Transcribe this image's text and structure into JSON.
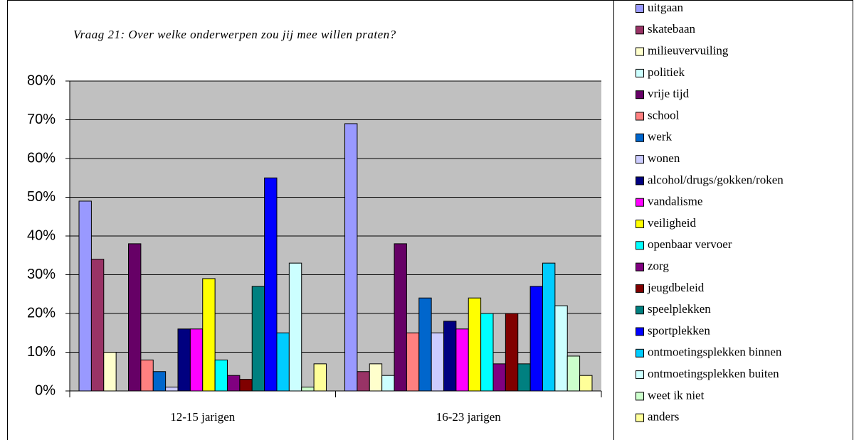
{
  "chart_data": {
    "type": "bar",
    "title": "Vraag 21: Over welke onderwerpen zou jij mee willen praten?",
    "categories": [
      "12-15 jarigen",
      "16-23 jarigen"
    ],
    "ylim": [
      0,
      80
    ],
    "yticks": [
      {
        "value": 0,
        "label": "0%"
      },
      {
        "value": 10,
        "label": "10%"
      },
      {
        "value": 20,
        "label": "20%"
      },
      {
        "value": 30,
        "label": "30%"
      },
      {
        "value": 40,
        "label": "40%"
      },
      {
        "value": 50,
        "label": "50%"
      },
      {
        "value": 60,
        "label": "60%"
      },
      {
        "value": 70,
        "label": "70%"
      },
      {
        "value": 80,
        "label": "80%"
      }
    ],
    "grid": true,
    "legend": "right",
    "series": [
      {
        "name": "uitgaan",
        "color": "#9999ff",
        "values": [
          49,
          69
        ]
      },
      {
        "name": "skatebaan",
        "color": "#993366",
        "values": [
          34,
          5
        ]
      },
      {
        "name": "milieuvervuiling",
        "color": "#ffffcc",
        "values": [
          10,
          7
        ]
      },
      {
        "name": "politiek",
        "color": "#ccffff",
        "values": [
          0,
          4
        ]
      },
      {
        "name": "vrije tijd",
        "color": "#660066",
        "values": [
          38,
          38
        ]
      },
      {
        "name": "school",
        "color": "#ff8080",
        "values": [
          8,
          15
        ]
      },
      {
        "name": "werk",
        "color": "#0066cc",
        "values": [
          5,
          24
        ]
      },
      {
        "name": "wonen",
        "color": "#ccccff",
        "values": [
          1,
          15
        ]
      },
      {
        "name": "alcohol/drugs/gokken/roken",
        "color": "#000080",
        "values": [
          16,
          18
        ]
      },
      {
        "name": "vandalisme",
        "color": "#ff00ff",
        "values": [
          16,
          16
        ]
      },
      {
        "name": "veiligheid",
        "color": "#ffff00",
        "values": [
          29,
          24
        ]
      },
      {
        "name": "openbaar vervoer",
        "color": "#00ffff",
        "values": [
          8,
          20
        ]
      },
      {
        "name": "zorg",
        "color": "#800080",
        "values": [
          4,
          7
        ]
      },
      {
        "name": "jeugdbeleid",
        "color": "#800000",
        "values": [
          3,
          20
        ]
      },
      {
        "name": "speelplekken",
        "color": "#008080",
        "values": [
          27,
          7
        ]
      },
      {
        "name": "sportplekken",
        "color": "#0000ff",
        "values": [
          55,
          27
        ]
      },
      {
        "name": "ontmoetingsplekken binnen",
        "color": "#00ccff",
        "values": [
          15,
          33
        ]
      },
      {
        "name": "ontmoetingsplekken buiten",
        "color": "#ccffff",
        "values": [
          33,
          22
        ]
      },
      {
        "name": "weet ik niet",
        "color": "#ccffcc",
        "values": [
          1,
          9
        ]
      },
      {
        "name": "anders",
        "color": "#ffff99",
        "values": [
          7,
          4
        ]
      }
    ]
  }
}
